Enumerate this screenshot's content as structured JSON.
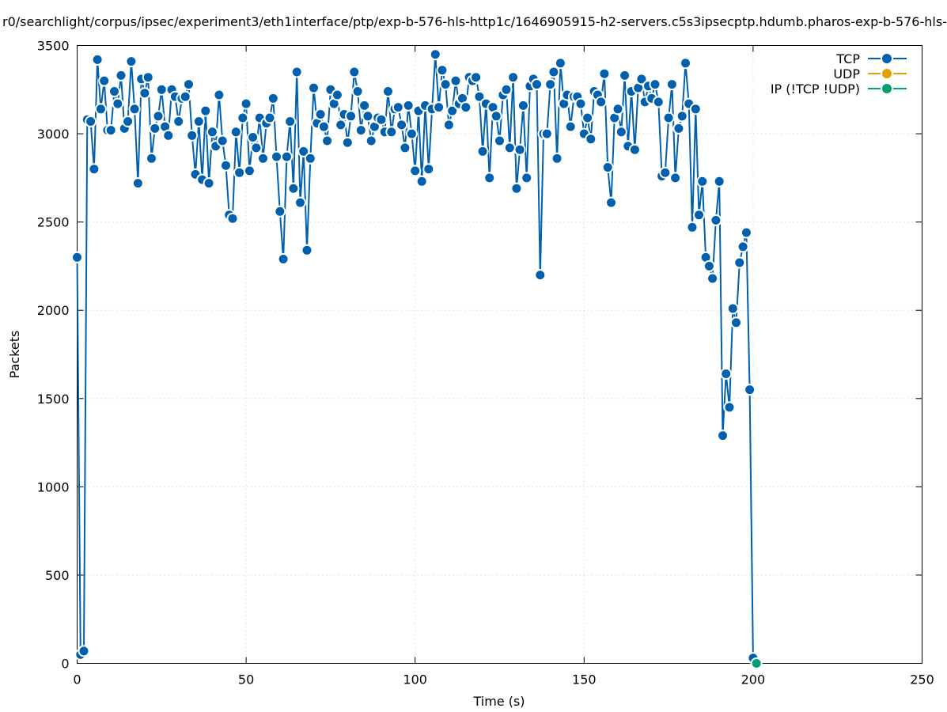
{
  "chart_data": {
    "type": "line",
    "title": "r0/searchlight/corpus/ipsec/experiment3/eth1interface/ptp/exp-b-576-hls-http1c/1646905915-h2-servers.c5s3ipsecptp.hdumb.pharos-exp-b-576-hls-",
    "xlabel": "Time (s)",
    "ylabel": "Packets",
    "xlim": [
      0,
      250
    ],
    "ylim": [
      0,
      3500
    ],
    "x_ticks": [
      0,
      50,
      100,
      150,
      200,
      250
    ],
    "y_ticks": [
      0,
      500,
      1000,
      1500,
      2000,
      2500,
      3000,
      3500
    ],
    "x_tick_labels": [
      "0",
      "50",
      "100",
      "150",
      "200",
      "250"
    ],
    "y_tick_labels": [
      "0",
      "500",
      "1000",
      "1500",
      "2000",
      "2500",
      "3000",
      "3500"
    ],
    "grid": true,
    "legend_position": "top-right",
    "series": [
      {
        "name": "TCP",
        "color": "#0060ad",
        "x": [
          0,
          1,
          2,
          3,
          4,
          5,
          6,
          7,
          8,
          9,
          10,
          11,
          12,
          13,
          14,
          15,
          16,
          17,
          18,
          19,
          20,
          21,
          22,
          23,
          24,
          25,
          26,
          27,
          28,
          29,
          30,
          31,
          32,
          33,
          34,
          35,
          36,
          37,
          38,
          39,
          40,
          41,
          42,
          43,
          44,
          45,
          46,
          47,
          48,
          49,
          50,
          51,
          52,
          53,
          54,
          55,
          56,
          57,
          58,
          59,
          60,
          61,
          62,
          63,
          64,
          65,
          66,
          67,
          68,
          69,
          70,
          71,
          72,
          73,
          74,
          75,
          76,
          77,
          78,
          79,
          80,
          81,
          82,
          83,
          84,
          85,
          86,
          87,
          88,
          89,
          90,
          91,
          92,
          93,
          94,
          95,
          96,
          97,
          98,
          99,
          100,
          101,
          102,
          103,
          104,
          105,
          106,
          107,
          108,
          109,
          110,
          111,
          112,
          113,
          114,
          115,
          116,
          117,
          118,
          119,
          120,
          121,
          122,
          123,
          124,
          125,
          126,
          127,
          128,
          129,
          130,
          131,
          132,
          133,
          134,
          135,
          136,
          137,
          138,
          139,
          140,
          141,
          142,
          143,
          144,
          145,
          146,
          147,
          148,
          149,
          150,
          151,
          152,
          153,
          154,
          155,
          156,
          157,
          158,
          159,
          160,
          161,
          162,
          163,
          164,
          165,
          166,
          167,
          168,
          169,
          170,
          171,
          172,
          173,
          174,
          175,
          176,
          177,
          178,
          179,
          180,
          181,
          182,
          183,
          184,
          185,
          186,
          187,
          188,
          189,
          190,
          191,
          192,
          193,
          194,
          195,
          196,
          197,
          198,
          199,
          200,
          201
        ],
        "y": [
          2300,
          50,
          70,
          3080,
          3070,
          2800,
          3420,
          3140,
          3300,
          3020,
          3020,
          3240,
          3170,
          3330,
          3030,
          3070,
          3410,
          3140,
          2720,
          3310,
          3230,
          3320,
          2860,
          3030,
          3100,
          3250,
          3040,
          2990,
          3250,
          3210,
          3070,
          3200,
          3210,
          3280,
          2990,
          2770,
          3070,
          2740,
          3130,
          2720,
          3010,
          2930,
          3220,
          2960,
          2820,
          2540,
          2520,
          3010,
          2780,
          3090,
          3170,
          2790,
          2980,
          2920,
          3090,
          2860,
          3060,
          3090,
          3200,
          2870,
          2560,
          2290,
          2870,
          3070,
          2690,
          3350,
          2610,
          2900,
          2340,
          2860,
          3260,
          3060,
          3110,
          3040,
          2960,
          3250,
          3170,
          3220,
          3050,
          3110,
          2950,
          3100,
          3350,
          3240,
          3020,
          3160,
          3100,
          2960,
          3040,
          3090,
          3080,
          3010,
          3240,
          3010,
          3140,
          3150,
          3050,
          2920,
          3160,
          3000,
          2790,
          3130,
          2730,
          3160,
          2800,
          3140,
          3450,
          3150,
          3360,
          3280,
          3050,
          3130,
          3300,
          3170,
          3200,
          3150,
          3320,
          3300,
          3320,
          3210,
          2900,
          3170,
          2750,
          3150,
          3100,
          2960,
          3220,
          3250,
          2920,
          3320,
          2690,
          2910,
          3160,
          2750,
          3270,
          3310,
          3280,
          2200,
          3000,
          3000,
          3280,
          3350,
          2860,
          3400,
          3170,
          3220,
          3040,
          3210,
          3210,
          3170,
          3000,
          3090,
          2970,
          3240,
          3220,
          3180,
          3340,
          2810,
          2610,
          3090,
          3140,
          3010,
          3330,
          2930,
          3240,
          2910,
          3260,
          3310,
          3180,
          3270,
          3200,
          3280,
          3180,
          2760,
          2780,
          3090,
          3280,
          2750,
          3030,
          3100,
          3400,
          3170,
          2470,
          3140,
          2540,
          2730,
          2300,
          2250,
          2180,
          2510,
          2730,
          1290,
          1640,
          1450,
          2010,
          1930,
          2270,
          2360,
          2440,
          1550,
          30,
          0
        ]
      },
      {
        "name": "UDP",
        "color": "#e69f00",
        "x": [],
        "y": []
      },
      {
        "name": "IP (!TCP  !UDP)",
        "color": "#009e73",
        "x": [
          201
        ],
        "y": [
          0
        ]
      }
    ]
  }
}
